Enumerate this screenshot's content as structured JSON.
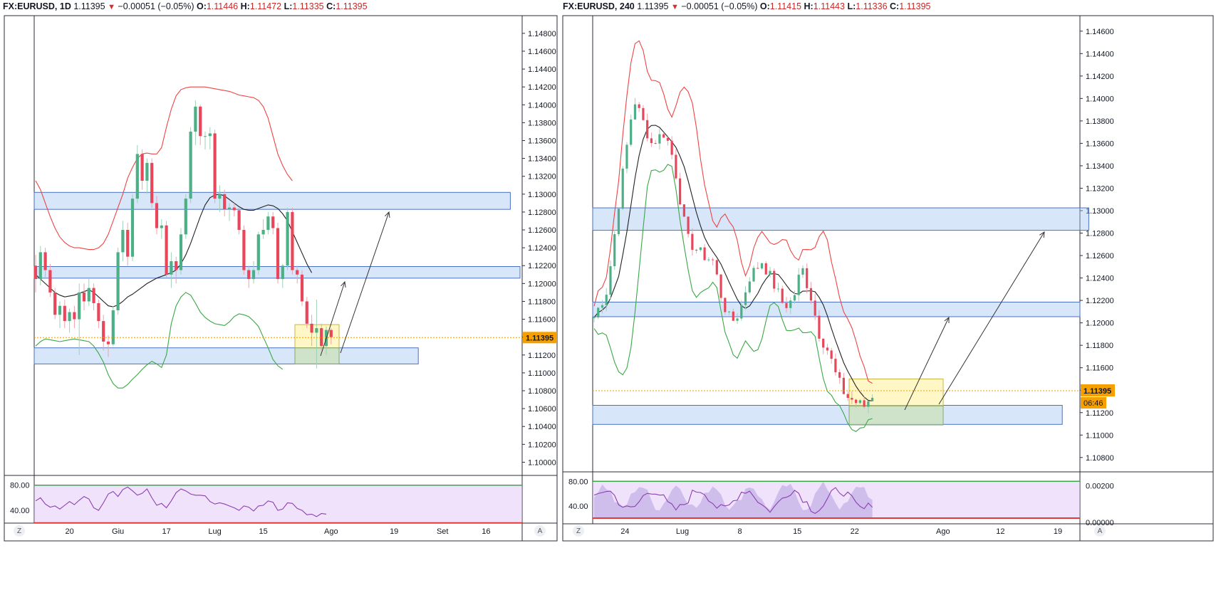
{
  "chart_data": [
    {
      "type": "candlestick",
      "panel": "left",
      "header": {
        "symbol": "FX:EURUSD, 1D",
        "last": "1.11395",
        "change": "−0.00051 (−0.05%)",
        "o_label": "O:",
        "o": "1.11446",
        "h_label": "H:",
        "h": "1.11472",
        "l_label": "L:",
        "l": "1.11335",
        "c_label": "C:",
        "c": "1.11395"
      },
      "ylim": [
        1.099,
        1.1495
      ],
      "y_ticks": [
        "1.14800",
        "1.14600",
        "1.14400",
        "1.14200",
        "1.14000",
        "1.13800",
        "1.13600",
        "1.13400",
        "1.13200",
        "1.13000",
        "1.12800",
        "1.12600",
        "1.12400",
        "1.12200",
        "1.12000",
        "1.11800",
        "1.11600",
        "1.11400",
        "1.11200",
        "1.11000",
        "1.10800",
        "1.10600",
        "1.10400",
        "1.10200",
        "1.10000"
      ],
      "price_label": "1.11395",
      "x_ticks": [
        {
          "label": "20",
          "idx": 7
        },
        {
          "label": "Giu",
          "idx": 17
        },
        {
          "label": "17",
          "idx": 27
        },
        {
          "label": "Lug",
          "idx": 37
        },
        {
          "label": "15",
          "idx": 47
        },
        {
          "label": "Ago",
          "idx": 61
        },
        {
          "label": "19",
          "idx": 74
        },
        {
          "label": "Set",
          "idx": 84
        },
        {
          "label": "16",
          "idx": 93
        }
      ],
      "candles": [
        [
          1.122,
          1.1232,
          1.119,
          1.1205
        ],
        [
          1.1205,
          1.1242,
          1.1198,
          1.1235
        ],
        [
          1.1235,
          1.124,
          1.1205,
          1.1215
        ],
        [
          1.1215,
          1.1222,
          1.1185,
          1.119
        ],
        [
          1.119,
          1.1195,
          1.116,
          1.1165
        ],
        [
          1.1165,
          1.118,
          1.115,
          1.1175
        ],
        [
          1.1175,
          1.1182,
          1.115,
          1.1158
        ],
        [
          1.1158,
          1.1172,
          1.1145,
          1.1168
        ],
        [
          1.1168,
          1.1175,
          1.115,
          1.116
        ],
        [
          1.116,
          1.12,
          1.112,
          1.119
        ],
        [
          1.119,
          1.12,
          1.117,
          1.118
        ],
        [
          1.118,
          1.1205,
          1.1175,
          1.1195
        ],
        [
          1.1195,
          1.12,
          1.117,
          1.1178
        ],
        [
          1.1178,
          1.1182,
          1.115,
          1.1158
        ],
        [
          1.1158,
          1.1165,
          1.1125,
          1.1135
        ],
        [
          1.1135,
          1.1142,
          1.1118,
          1.1132
        ],
        [
          1.1132,
          1.1175,
          1.113,
          1.117
        ],
        [
          1.117,
          1.124,
          1.1165,
          1.1235
        ],
        [
          1.1235,
          1.127,
          1.1225,
          1.126
        ],
        [
          1.126,
          1.1268,
          1.122,
          1.123
        ],
        [
          1.123,
          1.13,
          1.1225,
          1.1295
        ],
        [
          1.1295,
          1.1355,
          1.129,
          1.1345
        ],
        [
          1.1345,
          1.135,
          1.1305,
          1.1315
        ],
        [
          1.1315,
          1.134,
          1.13,
          1.1335
        ],
        [
          1.1335,
          1.134,
          1.1285,
          1.129
        ],
        [
          1.129,
          1.1298,
          1.1255,
          1.1262
        ],
        [
          1.1262,
          1.1272,
          1.125,
          1.1265
        ],
        [
          1.1265,
          1.127,
          1.1205,
          1.121
        ],
        [
          1.121,
          1.1235,
          1.1195,
          1.1225
        ],
        [
          1.1225,
          1.123,
          1.12,
          1.1215
        ],
        [
          1.1215,
          1.1262,
          1.121,
          1.1255
        ],
        [
          1.1255,
          1.13,
          1.125,
          1.1295
        ],
        [
          1.1295,
          1.1375,
          1.129,
          1.137
        ],
        [
          1.137,
          1.1405,
          1.1355,
          1.1398
        ],
        [
          1.1398,
          1.14,
          1.1355,
          1.1365
        ],
        [
          1.1365,
          1.137,
          1.135,
          1.1365
        ],
        [
          1.1365,
          1.1375,
          1.135,
          1.1368
        ],
        [
          1.1368,
          1.1372,
          1.129,
          1.1295
        ],
        [
          1.1295,
          1.131,
          1.128,
          1.13
        ],
        [
          1.13,
          1.1305,
          1.1275,
          1.1283
        ],
        [
          1.1283,
          1.129,
          1.127,
          1.1285
        ],
        [
          1.1285,
          1.129,
          1.1275,
          1.1282
        ],
        [
          1.1282,
          1.1285,
          1.1255,
          1.126
        ],
        [
          1.126,
          1.1265,
          1.121,
          1.1215
        ],
        [
          1.1215,
          1.122,
          1.1195,
          1.1205
        ],
        [
          1.1205,
          1.1225,
          1.12,
          1.1215
        ],
        [
          1.1215,
          1.1258,
          1.121,
          1.1255
        ],
        [
          1.1255,
          1.1272,
          1.125,
          1.126
        ],
        [
          1.126,
          1.128,
          1.1255,
          1.1275
        ],
        [
          1.1275,
          1.128,
          1.1255,
          1.1262
        ],
        [
          1.1262,
          1.1268,
          1.12,
          1.1205
        ],
        [
          1.1205,
          1.1222,
          1.1195,
          1.122
        ],
        [
          1.122,
          1.1285,
          1.1215,
          1.128
        ],
        [
          1.128,
          1.1285,
          1.121,
          1.1215
        ],
        [
          1.1215,
          1.122,
          1.12,
          1.121
        ],
        [
          1.121,
          1.1215,
          1.1175,
          1.118
        ],
        [
          1.118,
          1.1185,
          1.115,
          1.1155
        ],
        [
          1.1155,
          1.1165,
          1.113,
          1.1145
        ],
        [
          1.1145,
          1.1182,
          1.1105,
          1.115
        ],
        [
          1.115,
          1.1155,
          1.1125,
          1.113
        ],
        [
          1.113,
          1.1152,
          1.112,
          1.1148
        ],
        [
          1.1148,
          1.115,
          1.1132,
          1.114
        ]
      ],
      "ma_mid": [
        1.121,
        1.1205,
        1.12,
        1.1195,
        1.119,
        1.1187,
        1.1185,
        1.1186,
        1.1187,
        1.1189,
        1.1191,
        1.1193,
        1.119,
        1.1185,
        1.118,
        1.1175,
        1.1174,
        1.1176,
        1.118,
        1.1185,
        1.1188,
        1.1192,
        1.1196,
        1.12,
        1.1203,
        1.1206,
        1.1208,
        1.121,
        1.1212,
        1.1215,
        1.1222,
        1.1232,
        1.1245,
        1.126,
        1.1275,
        1.1288,
        1.1296,
        1.1299,
        1.13,
        1.1298,
        1.1294,
        1.129,
        1.1286,
        1.1283,
        1.1282,
        1.1282,
        1.1284,
        1.1286,
        1.1288,
        1.1287,
        1.1284,
        1.1278,
        1.127,
        1.1258,
        1.1246,
        1.1234,
        1.1222,
        1.1212
      ],
      "upper_band": [
        1.1315,
        1.1305,
        1.129,
        1.1275,
        1.1262,
        1.1252,
        1.1246,
        1.1242,
        1.124,
        1.124,
        1.1239,
        1.1238,
        1.1238,
        1.124,
        1.1245,
        1.1255,
        1.127,
        1.1285,
        1.13,
        1.1318,
        1.133,
        1.134,
        1.1345,
        1.1346,
        1.1345,
        1.1345,
        1.1352,
        1.1375,
        1.1395,
        1.141,
        1.1417,
        1.1419,
        1.142,
        1.142,
        1.142,
        1.142,
        1.1419,
        1.1418,
        1.1417,
        1.1416,
        1.1415,
        1.1413,
        1.1411,
        1.141,
        1.1409,
        1.1408,
        1.1405,
        1.1398,
        1.1385,
        1.1365,
        1.1345,
        1.1332,
        1.1322,
        1.1315
      ],
      "lower_band": [
        1.113,
        1.1135,
        1.1138,
        1.1137,
        1.1136,
        1.1135,
        1.1136,
        1.1137,
        1.1138,
        1.1137,
        1.1136,
        1.1135,
        1.113,
        1.1122,
        1.1112,
        1.1098,
        1.1088,
        1.1083,
        1.1083,
        1.1087,
        1.1093,
        1.1098,
        1.1104,
        1.1109,
        1.1113,
        1.111,
        1.1106,
        1.112,
        1.1155,
        1.1175,
        1.1185,
        1.119,
        1.1187,
        1.1178,
        1.1168,
        1.1162,
        1.1158,
        1.1155,
        1.1154,
        1.1153,
        1.1157,
        1.1163,
        1.1166,
        1.1165,
        1.1163,
        1.1158,
        1.1152,
        1.114,
        1.1128,
        1.1115,
        1.1108,
        1.1104
      ],
      "zones": [
        {
          "top": 1.1302,
          "bottom": 1.1283,
          "from": 0,
          "to": 98
        },
        {
          "top": 1.1219,
          "bottom": 1.1206,
          "from": 0,
          "to": 100
        },
        {
          "top": 1.1128,
          "bottom": 1.111,
          "from": 0,
          "to": 79
        }
      ],
      "rsi": {
        "ticks": [
          "80.00",
          "40.00"
        ],
        "values": [
          55,
          60,
          50,
          45,
          47,
          42,
          48,
          54,
          49,
          56,
          62,
          58,
          44,
          40,
          52,
          66,
          70,
          62,
          73,
          77,
          71,
          64,
          67,
          74,
          60,
          48,
          51,
          44,
          55,
          68,
          74,
          71,
          66,
          64,
          64,
          63,
          54,
          50,
          52,
          50,
          47,
          44,
          40,
          47,
          45,
          39,
          47,
          48,
          55,
          53,
          40,
          42,
          52,
          51,
          43,
          40,
          33,
          34,
          30,
          35,
          34
        ]
      }
    },
    {
      "type": "candlestick",
      "panel": "right",
      "header": {
        "symbol": "FX:EURUSD, 240",
        "last": "1.11395",
        "change": "−0.00051 (−0.05%)",
        "o_label": "O:",
        "o": "1.11415",
        "h_label": "H:",
        "h": "1.11443",
        "l_label": "L:",
        "l": "1.11336",
        "c_label": "C:",
        "c": "1.11395"
      },
      "ylim": [
        1.1071,
        1.147
      ],
      "y_ticks": [
        "1.14600",
        "1.14400",
        "1.14200",
        "1.14000",
        "1.13800",
        "1.13600",
        "1.13400",
        "1.13200",
        "1.13000",
        "1.12800",
        "1.12600",
        "1.12400",
        "1.12200",
        "1.12000",
        "1.11800",
        "1.11600",
        "1.11400",
        "1.11200",
        "1.11000",
        "1.10800"
      ],
      "price_label": "1.11395",
      "countdown": "06:46",
      "x_ticks": [
        {
          "label": "24",
          "idx": 7
        },
        {
          "label": "Lug",
          "idx": 20
        },
        {
          "label": "8",
          "idx": 33
        },
        {
          "label": "15",
          "idx": 46
        },
        {
          "label": "22",
          "idx": 59
        },
        {
          "label": "Ago",
          "idx": 79
        },
        {
          "label": "12",
          "idx": 92
        },
        {
          "label": "19",
          "idx": 105
        }
      ],
      "rsi": {
        "ticks": [
          "80.00",
          "40.00"
        ],
        "ticks_right": [
          "0.00200",
          "0.00000"
        ]
      }
    }
  ]
}
